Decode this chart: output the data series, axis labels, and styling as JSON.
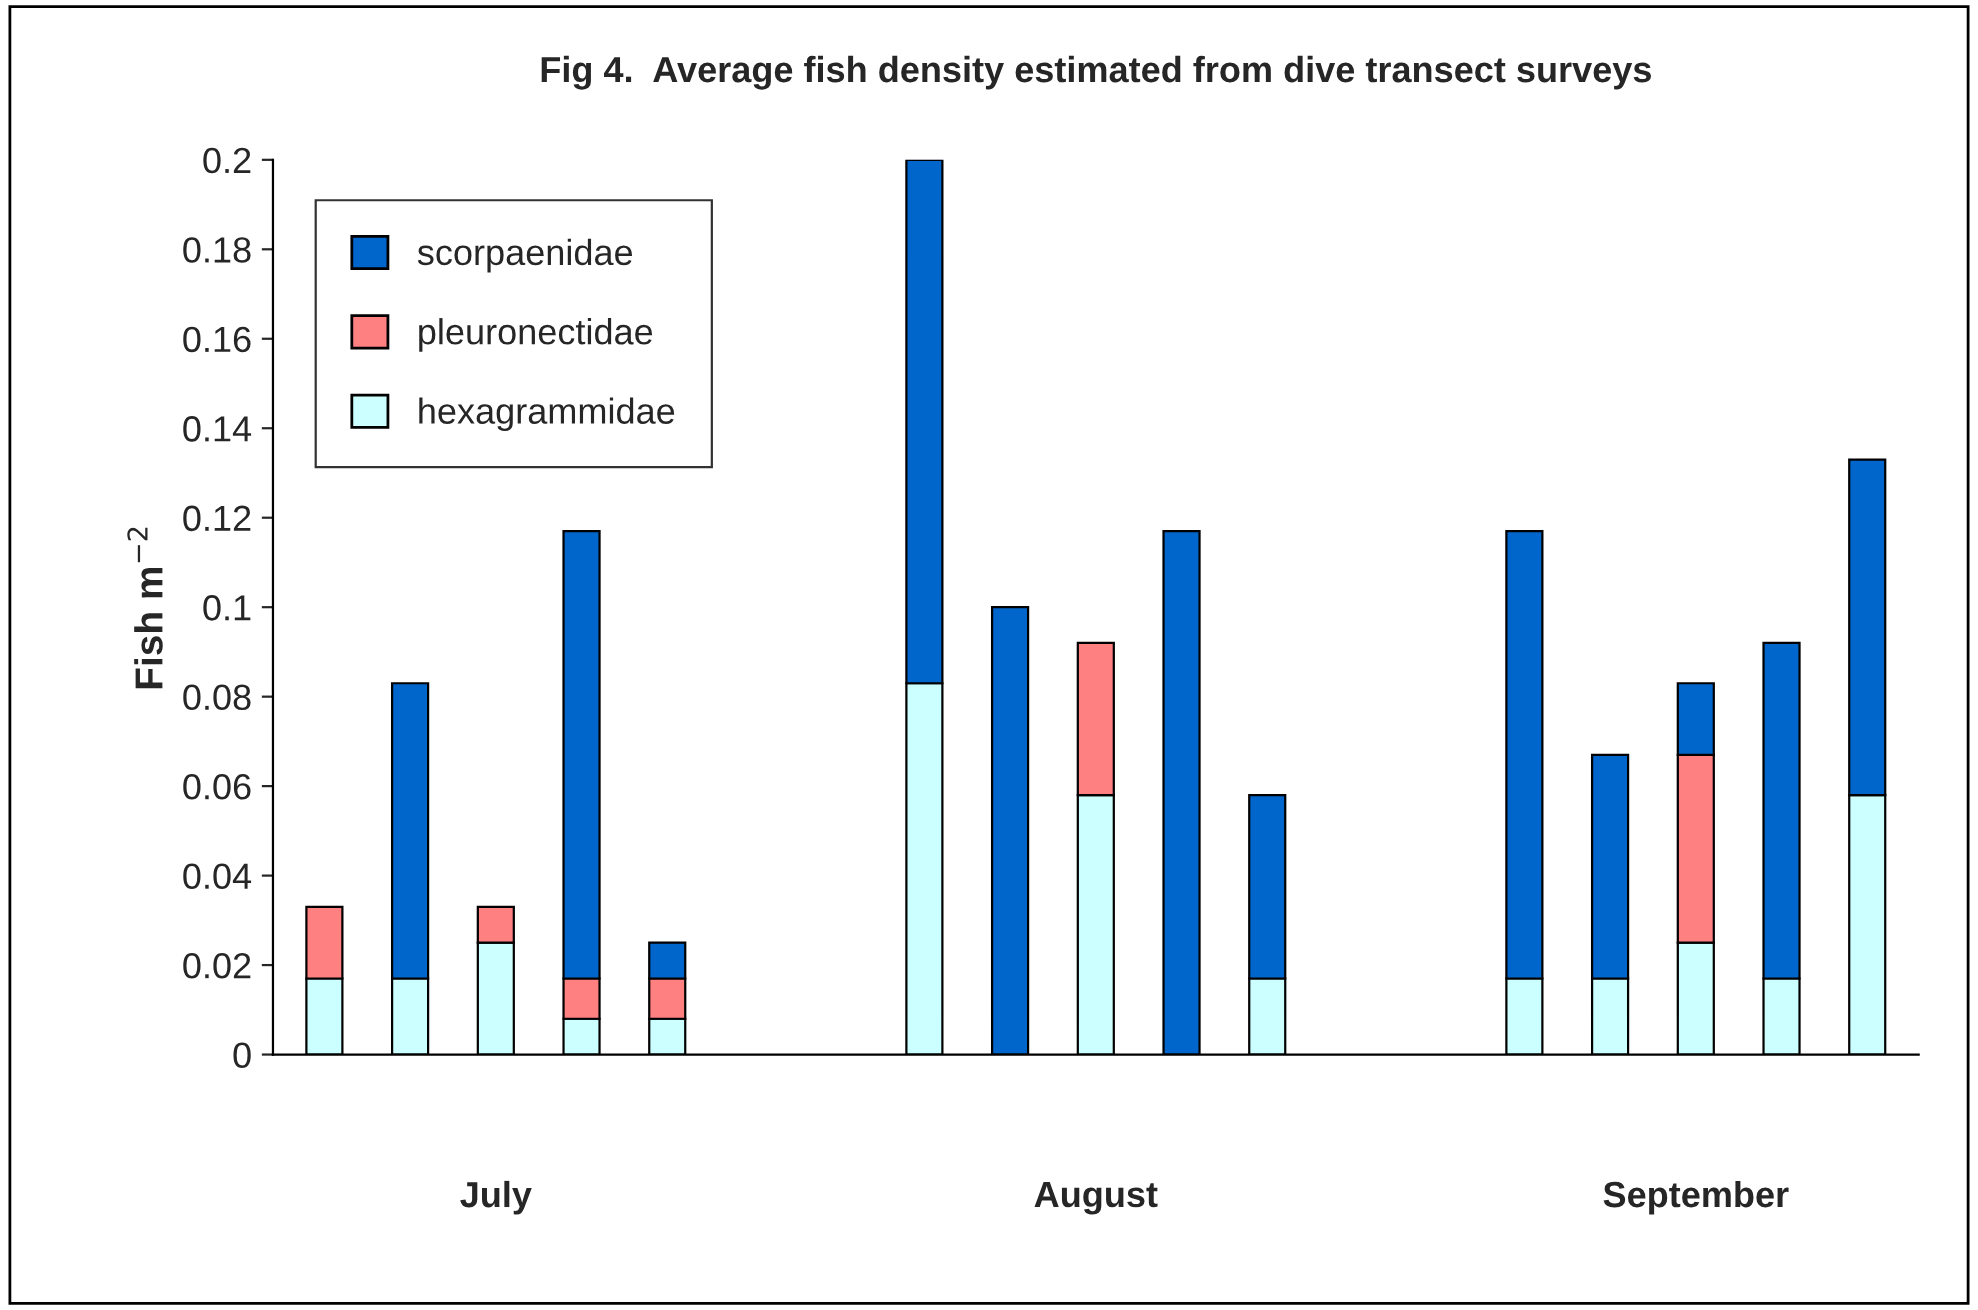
{
  "chart_data": {
    "type": "bar",
    "title": "Fig 4.  Average fish density estimated from dive transect surveys",
    "ylabel": "Fish m$^{−2}$",
    "categories": [
      null,
      null,
      null,
      null,
      null,
      null,
      null,
      null,
      null,
      null,
      null,
      null,
      null,
      null,
      null,
      null,
      null,
      null,
      null
    ],
    "stacked": true,
    "series": [
      {
        "name": "hexagrammidae",
        "color": "#ccffff",
        "values": [
          0.017,
          0.017,
          0.025,
          0.008,
          0.008,
          null,
          null,
          0.083,
          null,
          0.058,
          null,
          0.017,
          null,
          null,
          0.017,
          0.017,
          0.025,
          0.017,
          0.058
        ]
      },
      {
        "name": "pleuronectidae",
        "color": "#ff8080",
        "values": [
          0.016,
          null,
          0.008,
          0.009,
          0.009,
          null,
          null,
          null,
          null,
          0.034,
          null,
          null,
          null,
          null,
          null,
          null,
          0.042,
          null,
          null
        ]
      },
      {
        "name": "scorpaenidae",
        "color": "#0066cc",
        "values": [
          null,
          0.066,
          null,
          0.1,
          0.008,
          null,
          null,
          0.117,
          0.1,
          null,
          0.117,
          0.041,
          null,
          null,
          0.1,
          0.05,
          0.016,
          0.075,
          0.075
        ]
      }
    ],
    "annotations": [
      "July",
      "August",
      "September"
    ],
    "ylim": [
      0,
      0.2
    ],
    "yticks": [
      0,
      0.02,
      0.04,
      0.06,
      0.08,
      0.1,
      0.12,
      0.14,
      0.16,
      0.18,
      0.2
    ],
    "legend": "top left",
    "grid": false
  }
}
